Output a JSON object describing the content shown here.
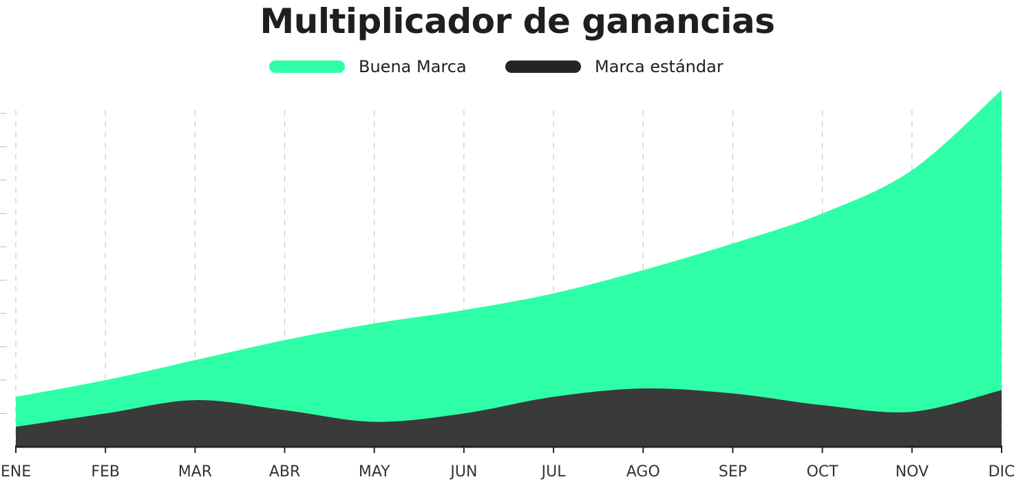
{
  "chart_data": {
    "type": "area",
    "title": "Multiplicador de ganancias",
    "xlabel": "",
    "ylabel": "",
    "categories": [
      "ENE",
      "FEB",
      "MAR",
      "ABR",
      "MAY",
      "JUN",
      "JUL",
      "AGO",
      "SEP",
      "OCT",
      "NOV",
      "DIC"
    ],
    "ylim": [
      0,
      10
    ],
    "grid": true,
    "legend_position": "top-center",
    "series": [
      {
        "name": "Buena Marca",
        "color": "#2effa6",
        "values": [
          1.5,
          2.0,
          2.6,
          3.2,
          3.7,
          4.1,
          4.6,
          5.3,
          6.1,
          7.0,
          8.3,
          10.7
        ]
      },
      {
        "name": "Marca estándar",
        "color": "#3a3a3a",
        "values": [
          0.6,
          1.0,
          1.4,
          1.1,
          0.75,
          1.0,
          1.5,
          1.75,
          1.6,
          1.25,
          1.05,
          1.7
        ]
      }
    ]
  }
}
